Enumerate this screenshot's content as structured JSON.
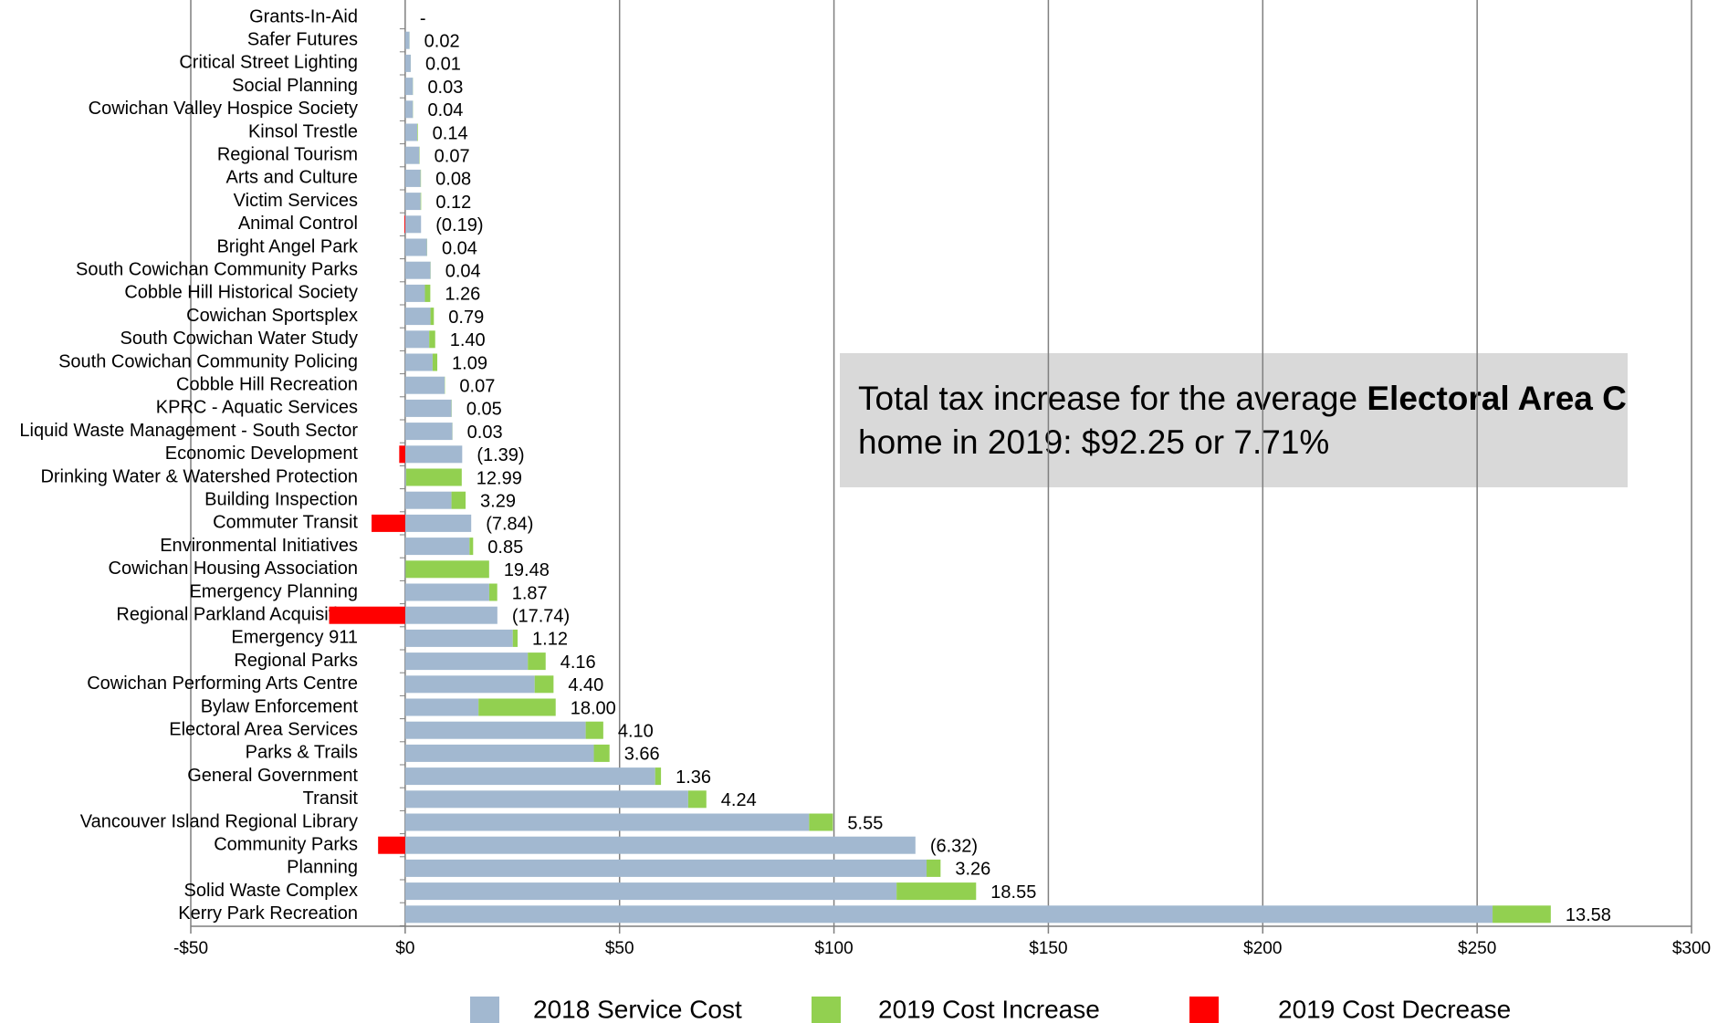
{
  "chart_data": {
    "type": "bar",
    "orientation": "horizontal",
    "categories": [
      "Grants-In-Aid",
      "Safer Futures",
      "Critical Street Lighting",
      "Social Planning",
      "Cowichan Valley Hospice Society",
      "Kinsol Trestle",
      "Regional Tourism",
      "Arts and Culture",
      "Victim Services",
      "Animal Control",
      "Bright Angel Park",
      "South Cowichan Community Parks",
      "Cobble Hill Historical Society",
      "Cowichan Sportsplex",
      "South Cowichan Water Study",
      "South Cowichan Community Policing",
      "Cobble Hill Recreation",
      "KPRC - Aquatic Services",
      "Liquid Waste Management - South Sector",
      "Economic Development",
      "Drinking Water & Watershed Protection",
      "Building Inspection",
      "Commuter Transit",
      "Environmental Initiatives",
      "Cowichan Housing Association",
      "Emergency Planning",
      "Regional Parkland Acquisition",
      "Emergency 911",
      "Regional Parks",
      "Cowichan Performing Arts Centre",
      "Bylaw Enforcement",
      "Electoral Area Services",
      "Parks & Trails",
      "General Government",
      "Transit",
      "Vancouver Island Regional Library",
      "Community Parks",
      "Planning",
      "Solid Waste Complex",
      "Kerry Park Recreation"
    ],
    "series": [
      {
        "name": "2018 Service Cost",
        "color": "#a2b8d0",
        "values": [
          0,
          1.0,
          1.3,
          1.8,
          1.8,
          2.8,
          3.3,
          3.6,
          3.6,
          3.7,
          5.1,
          5.9,
          4.6,
          5.9,
          5.6,
          6.4,
          9.2,
          10.8,
          11.0,
          13.3,
          0.2,
          10.8,
          15.4,
          15.0,
          0.1,
          19.6,
          21.5,
          25.1,
          28.6,
          30.2,
          17.1,
          42.1,
          44.0,
          58.3,
          66.0,
          94.2,
          119.0,
          121.6,
          114.6,
          253.6
        ]
      },
      {
        "name": "2019 Cost Increase",
        "color": "#92d050",
        "values": [
          0,
          0.02,
          0.01,
          0.03,
          0.04,
          0.14,
          0.07,
          0.08,
          0.12,
          null,
          0.04,
          0.04,
          1.26,
          0.79,
          1.4,
          1.09,
          0.07,
          0.05,
          0.03,
          null,
          12.99,
          3.29,
          null,
          0.85,
          19.48,
          1.87,
          null,
          1.12,
          4.16,
          4.4,
          18.0,
          4.1,
          3.66,
          1.36,
          4.24,
          5.55,
          null,
          3.26,
          18.55,
          13.58
        ],
        "value_labels": [
          "-",
          "0.02",
          "0.01",
          "0.03",
          "0.04",
          "0.14",
          "0.07",
          "0.08",
          "0.12",
          null,
          "0.04",
          "0.04",
          "1.26",
          "0.79",
          "1.40",
          "1.09",
          "0.07",
          "0.05",
          "0.03",
          null,
          "12.99",
          "3.29",
          null,
          "0.85",
          "19.48",
          "1.87",
          null,
          "1.12",
          "4.16",
          "4.40",
          "18.00",
          "4.10",
          "3.66",
          "1.36",
          "4.24",
          "5.55",
          null,
          "3.26",
          "18.55",
          "13.58"
        ]
      },
      {
        "name": "2019 Cost Decrease",
        "color": "#ff0000",
        "values": [
          null,
          null,
          null,
          null,
          null,
          null,
          null,
          null,
          null,
          -0.19,
          null,
          null,
          null,
          null,
          null,
          null,
          null,
          null,
          null,
          -1.39,
          null,
          null,
          -7.84,
          null,
          null,
          null,
          -17.74,
          null,
          null,
          null,
          null,
          null,
          null,
          null,
          null,
          null,
          -6.32,
          null,
          null,
          null
        ],
        "value_labels": [
          null,
          null,
          null,
          null,
          null,
          null,
          null,
          null,
          null,
          "(0.19)",
          null,
          null,
          null,
          null,
          null,
          null,
          null,
          null,
          null,
          "(1.39)",
          null,
          null,
          "(7.84)",
          null,
          null,
          null,
          "(17.74)",
          null,
          null,
          null,
          null,
          null,
          null,
          null,
          null,
          null,
          "(6.32)",
          null,
          null,
          null
        ]
      }
    ],
    "xlim": [
      -50,
      300
    ],
    "xticks": [
      {
        "value": -50,
        "label": "-$50"
      },
      {
        "value": 0,
        "label": "$0"
      },
      {
        "value": 50,
        "label": "$50"
      },
      {
        "value": 100,
        "label": "$100"
      },
      {
        "value": 150,
        "label": "$150"
      },
      {
        "value": 200,
        "label": "$200"
      },
      {
        "value": 250,
        "label": "$250"
      },
      {
        "value": 300,
        "label": "$300"
      }
    ],
    "grid": true,
    "legend": "bottom",
    "annotation": {
      "text_before": "Total tax increase for the average ",
      "bold": "Electoral Area C",
      "text_after": " home in 2019: $92.25 or 7.71%"
    }
  }
}
